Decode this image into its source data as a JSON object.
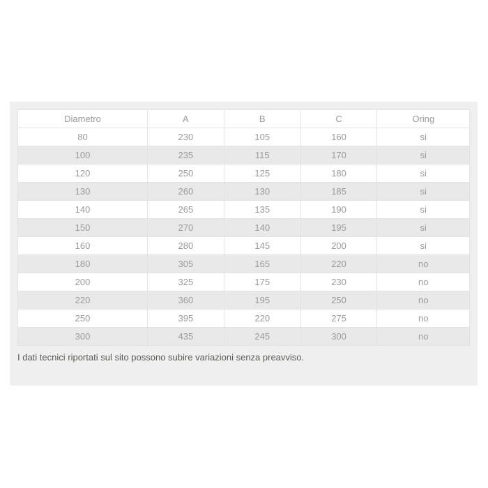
{
  "table": {
    "columns": [
      "Diametro",
      "A",
      "B",
      "C",
      "Oring"
    ],
    "rows": [
      [
        "80",
        "230",
        "105",
        "160",
        "si"
      ],
      [
        "100",
        "235",
        "115",
        "170",
        "si"
      ],
      [
        "120",
        "250",
        "125",
        "180",
        "si"
      ],
      [
        "130",
        "260",
        "130",
        "185",
        "si"
      ],
      [
        "140",
        "265",
        "135",
        "190",
        "si"
      ],
      [
        "150",
        "270",
        "140",
        "195",
        "si"
      ],
      [
        "160",
        "280",
        "145",
        "200",
        "si"
      ],
      [
        "180",
        "305",
        "165",
        "220",
        "no"
      ],
      [
        "200",
        "325",
        "175",
        "230",
        "no"
      ],
      [
        "220",
        "360",
        "195",
        "250",
        "no"
      ],
      [
        "250",
        "395",
        "220",
        "275",
        "no"
      ],
      [
        "300",
        "435",
        "245",
        "300",
        "no"
      ]
    ]
  },
  "footer": {
    "note": "I dati tecnici riportati sul sito possono subire variazioni senza preavviso."
  },
  "colors": {
    "panel_bg": "#efefef",
    "stripe_row_bg": "#e9e9e9",
    "table_border": "#e2e2e2",
    "cell_text": "#9a9a9a",
    "note_text": "#5d5852"
  }
}
